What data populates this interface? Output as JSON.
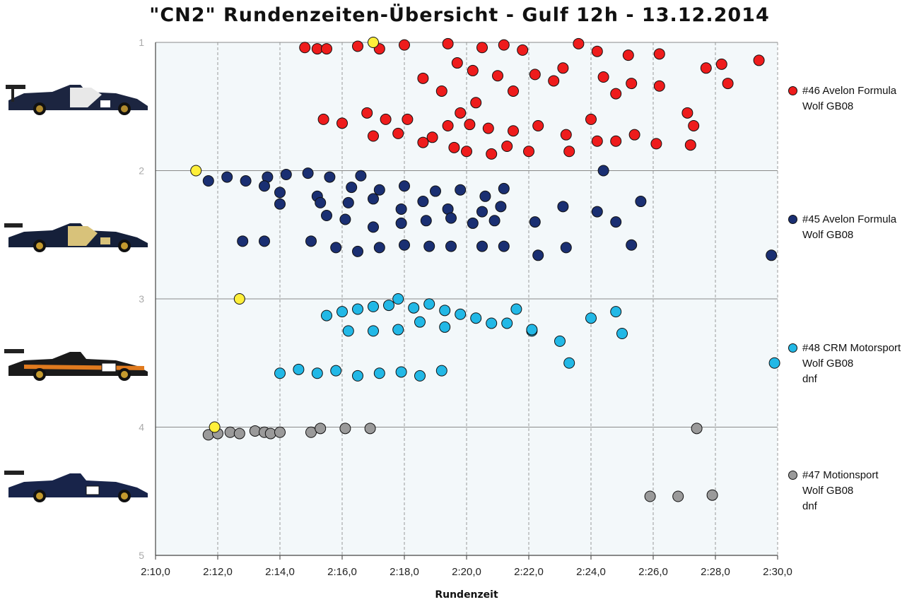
{
  "chart_data": {
    "type": "scatter",
    "title": "\"CN2\" Rundenzeiten-Übersicht - Gulf 12h - 13.12.2014",
    "xlabel": "Rundenzeit",
    "ylabel": "",
    "xlim": [
      130,
      150
    ],
    "ylim": [
      5,
      1
    ],
    "x_ticks": [
      130,
      132,
      134,
      136,
      138,
      140,
      142,
      144,
      146,
      148,
      150
    ],
    "x_tick_labels": [
      "2:10,0",
      "2:12,0",
      "2:14,0",
      "2:16,0",
      "2:18,0",
      "2:20,0",
      "2:22,0",
      "2:24,0",
      "2:26,0",
      "2:28,0",
      "2:30,0"
    ],
    "y_ticks": [
      1,
      2,
      3,
      4,
      5
    ],
    "y_tick_labels": [
      "1",
      "2",
      "3",
      "4",
      "5"
    ],
    "grid": "vertical dashed, horizontal solid",
    "legend_position": "right",
    "series": [
      {
        "name": "#46 Avelon Formula Wolf GB08",
        "legend_lines": [
          "#46 Avelon Formula",
          "Wolf GB08"
        ],
        "color": "#ee1c1c",
        "points": [
          [
            134.8,
            1.04
          ],
          [
            135.2,
            1.05
          ],
          [
            135.5,
            1.05
          ],
          [
            136.5,
            1.03
          ],
          [
            137.2,
            1.05
          ],
          [
            138.0,
            1.02
          ],
          [
            139.4,
            1.01
          ],
          [
            140.5,
            1.04
          ],
          [
            141.2,
            1.02
          ],
          [
            141.8,
            1.06
          ],
          [
            143.6,
            1.01
          ],
          [
            144.2,
            1.07
          ],
          [
            145.2,
            1.1
          ],
          [
            146.2,
            1.09
          ],
          [
            149.4,
            1.14
          ],
          [
            148.2,
            1.17
          ],
          [
            147.7,
            1.2
          ],
          [
            148.4,
            1.32
          ],
          [
            146.2,
            1.34
          ],
          [
            145.3,
            1.32
          ],
          [
            144.4,
            1.27
          ],
          [
            144.8,
            1.4
          ],
          [
            142.8,
            1.3
          ],
          [
            141.5,
            1.38
          ],
          [
            140.2,
            1.22
          ],
          [
            139.2,
            1.38
          ],
          [
            138.6,
            1.28
          ],
          [
            139.7,
            1.16
          ],
          [
            141.0,
            1.26
          ],
          [
            142.2,
            1.25
          ],
          [
            143.1,
            1.2
          ],
          [
            140.3,
            1.47
          ],
          [
            139.8,
            1.55
          ],
          [
            138.1,
            1.6
          ],
          [
            137.4,
            1.6
          ],
          [
            136.8,
            1.55
          ],
          [
            136.0,
            1.63
          ],
          [
            135.4,
            1.6
          ],
          [
            137.0,
            1.73
          ],
          [
            137.8,
            1.71
          ],
          [
            138.6,
            1.78
          ],
          [
            139.4,
            1.65
          ],
          [
            140.1,
            1.64
          ],
          [
            140.7,
            1.67
          ],
          [
            141.5,
            1.69
          ],
          [
            142.3,
            1.65
          ],
          [
            143.2,
            1.72
          ],
          [
            144.0,
            1.6
          ],
          [
            144.8,
            1.77
          ],
          [
            145.4,
            1.72
          ],
          [
            146.1,
            1.79
          ],
          [
            147.1,
            1.55
          ],
          [
            147.2,
            1.8
          ],
          [
            147.3,
            1.65
          ],
          [
            140.0,
            1.85
          ],
          [
            140.8,
            1.87
          ],
          [
            142.0,
            1.85
          ],
          [
            143.3,
            1.85
          ],
          [
            144.2,
            1.77
          ],
          [
            141.3,
            1.81
          ],
          [
            139.6,
            1.82
          ],
          [
            138.9,
            1.74
          ]
        ]
      },
      {
        "name": "#45 Avelon Formula Wolf GB08",
        "legend_lines": [
          "#45 Avelon Formula",
          "Wolf GB08"
        ],
        "color": "#1a2f72",
        "points": [
          [
            131.7,
            2.08
          ],
          [
            132.3,
            2.05
          ],
          [
            132.9,
            2.08
          ],
          [
            133.6,
            2.05
          ],
          [
            134.2,
            2.03
          ],
          [
            134.9,
            2.02
          ],
          [
            135.6,
            2.05
          ],
          [
            136.6,
            2.04
          ],
          [
            133.5,
            2.12
          ],
          [
            134.0,
            2.17
          ],
          [
            135.2,
            2.2
          ],
          [
            136.3,
            2.13
          ],
          [
            137.2,
            2.15
          ],
          [
            138.0,
            2.12
          ],
          [
            139.0,
            2.16
          ],
          [
            139.8,
            2.15
          ],
          [
            140.6,
            2.2
          ],
          [
            141.2,
            2.14
          ],
          [
            134.0,
            2.26
          ],
          [
            135.3,
            2.25
          ],
          [
            136.2,
            2.25
          ],
          [
            137.0,
            2.22
          ],
          [
            137.9,
            2.3
          ],
          [
            138.6,
            2.24
          ],
          [
            139.4,
            2.3
          ],
          [
            140.5,
            2.32
          ],
          [
            141.1,
            2.28
          ],
          [
            142.2,
            2.4
          ],
          [
            143.1,
            2.28
          ],
          [
            144.2,
            2.32
          ],
          [
            145.6,
            2.24
          ],
          [
            144.8,
            2.4
          ],
          [
            135.5,
            2.35
          ],
          [
            136.1,
            2.38
          ],
          [
            137.0,
            2.44
          ],
          [
            137.9,
            2.41
          ],
          [
            138.7,
            2.39
          ],
          [
            139.5,
            2.37
          ],
          [
            140.2,
            2.41
          ],
          [
            140.9,
            2.39
          ],
          [
            132.8,
            2.55
          ],
          [
            133.5,
            2.55
          ],
          [
            135.0,
            2.55
          ],
          [
            135.8,
            2.6
          ],
          [
            136.5,
            2.63
          ],
          [
            137.2,
            2.6
          ],
          [
            138.0,
            2.58
          ],
          [
            138.8,
            2.59
          ],
          [
            139.5,
            2.59
          ],
          [
            140.5,
            2.59
          ],
          [
            141.2,
            2.59
          ],
          [
            142.3,
            2.66
          ],
          [
            143.2,
            2.6
          ],
          [
            145.3,
            2.58
          ],
          [
            149.8,
            2.66
          ],
          [
            144.4,
            2.0
          ]
        ]
      },
      {
        "name": "#48 CRM Motorsport Wolf GB08 dnf",
        "legend_lines": [
          "#48 CRM Motorsport",
          "Wolf GB08",
          "dnf"
        ],
        "color": "#22b8e6",
        "points": [
          [
            135.5,
            3.13
          ],
          [
            136.0,
            3.1
          ],
          [
            136.5,
            3.08
          ],
          [
            137.0,
            3.06
          ],
          [
            137.5,
            3.05
          ],
          [
            137.8,
            3.0
          ],
          [
            138.3,
            3.07
          ],
          [
            138.8,
            3.04
          ],
          [
            139.3,
            3.09
          ],
          [
            139.8,
            3.12
          ],
          [
            140.3,
            3.15
          ],
          [
            140.8,
            3.19
          ],
          [
            141.3,
            3.19
          ],
          [
            141.6,
            3.08
          ],
          [
            142.1,
            3.25
          ],
          [
            143.0,
            3.33
          ],
          [
            144.0,
            3.15
          ],
          [
            144.8,
            3.1
          ],
          [
            145.0,
            3.27
          ],
          [
            136.2,
            3.25
          ],
          [
            137.0,
            3.25
          ],
          [
            137.8,
            3.24
          ],
          [
            138.5,
            3.18
          ],
          [
            139.3,
            3.22
          ],
          [
            134.0,
            3.58
          ],
          [
            134.6,
            3.55
          ],
          [
            135.2,
            3.58
          ],
          [
            135.8,
            3.56
          ],
          [
            136.5,
            3.6
          ],
          [
            137.2,
            3.58
          ],
          [
            137.9,
            3.57
          ],
          [
            138.5,
            3.6
          ],
          [
            139.2,
            3.56
          ],
          [
            143.3,
            3.5
          ],
          [
            149.9,
            3.5
          ],
          [
            142.1,
            3.24
          ]
        ]
      },
      {
        "name": "#47 Motionsport Wolf GB08 dnf",
        "legend_lines": [
          "#47 Motionsport",
          "Wolf GB08",
          "dnf"
        ],
        "color": "#9a9a9a",
        "points": [
          [
            131.7,
            4.06
          ],
          [
            132.0,
            4.05
          ],
          [
            132.4,
            4.04
          ],
          [
            132.7,
            4.05
          ],
          [
            133.2,
            4.03
          ],
          [
            133.5,
            4.04
          ],
          [
            133.7,
            4.05
          ],
          [
            134.0,
            4.04
          ],
          [
            135.0,
            4.04
          ],
          [
            135.3,
            4.01
          ],
          [
            136.1,
            4.01
          ],
          [
            136.9,
            4.01
          ],
          [
            147.4,
            4.01
          ],
          [
            145.9,
            4.54
          ],
          [
            146.8,
            4.54
          ],
          [
            147.9,
            4.53
          ]
        ]
      }
    ],
    "highlight_points": {
      "color": "#ffef3a",
      "points": [
        [
          137.0,
          1.0
        ],
        [
          131.3,
          2.0
        ],
        [
          132.7,
          3.0
        ],
        [
          131.9,
          4.0
        ]
      ]
    }
  },
  "images": {
    "car_46": "car-46-image",
    "car_45": "car-45-image",
    "car_48": "car-48-image",
    "car_47": "car-47-image"
  }
}
